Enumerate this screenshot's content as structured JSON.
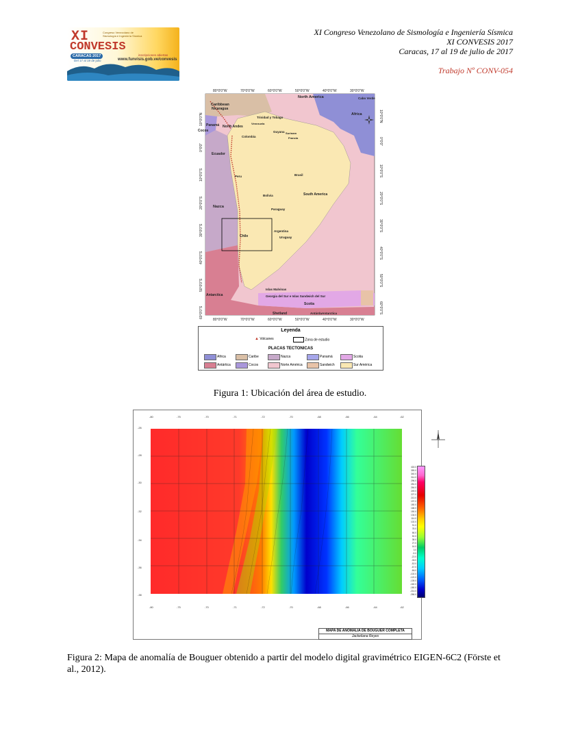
{
  "logo": {
    "line1": "XI",
    "line2": "CONVESIS",
    "sub": "Congreso Venezolano de Sismología e Ingeniería Sísmica",
    "badge": "CARACAS 2017",
    "dates": "Del 17 al 19 de julio",
    "inscripciones": "inscripciones abiertas",
    "url": "www.funvisis.gob.ve/convesis"
  },
  "header": {
    "line1": "XI Congreso Venezolano de Sismología e Ingeniería Sísmica",
    "line2": "XI CONVESIS 2017",
    "line3": "Caracas, 17 al 19 de julio de 2017",
    "paper_id": "Trabajo Nº CONV-054"
  },
  "figure1": {
    "lon_labels": [
      "80°0'0\"W",
      "70°0'0\"W",
      "60°0'0\"W",
      "50°0'0\"W",
      "40°0'0\"W",
      "30°0'0\"W"
    ],
    "lat_labels": [
      "10°0'0\"N",
      "0°0'0\"",
      "10°0'0\"S",
      "20°0'0\"S",
      "30°0'0\"S",
      "40°0'0\"S",
      "50°0'0\"S",
      "60°0'0\"S"
    ],
    "labels": {
      "caribbean": "Caribbean",
      "north_america": "North America",
      "cabo_verde": "Cabo Verde",
      "africa": "Africa",
      "nicaragua": "Nicaragua",
      "panama": "Panamá",
      "cocos": "Cocos",
      "north_andes": "North Andes",
      "colombia": "Colombia",
      "ecuador": "Ecuador",
      "trinidad": "Trinidad y Tobago",
      "venezuela": "Venezuela",
      "guyana": "Guyana",
      "surinam": "Surinam",
      "francia": "Francia",
      "peru": "Peru",
      "brasil": "Brasil",
      "bolivia": "Bolivia",
      "south_america": "South America",
      "paraguay": "Paraguay",
      "nazca": "Nazca",
      "chile": "Chile",
      "argentina": "Argentina",
      "uruguay": "Uruguay",
      "antarctica": "Antarctica",
      "malvinas": "Islas Malvinas",
      "georgia": "Georgia del Sur e Islas Sandwich del Sur",
      "scotia": "Scotia",
      "shetland": "Shetland",
      "antartida": "AntárdaAntarctica"
    },
    "legend": {
      "title": "Leyenda",
      "volcanes": "Volcanes",
      "zona": "Zona de estudio",
      "plates_title": "PLACAS TECTONICAS",
      "plates": [
        {
          "name": "Africa",
          "color": "#8f8fd6"
        },
        {
          "name": "Caribe",
          "color": "#d9bfa6"
        },
        {
          "name": "Nazca",
          "color": "#c6a9c9"
        },
        {
          "name": "Panamá",
          "color": "#a6a6ea"
        },
        {
          "name": "Scotia",
          "color": "#e2a8e6"
        },
        {
          "name": "Antártica",
          "color": "#d87f92"
        },
        {
          "name": "Cocos",
          "color": "#a997db"
        },
        {
          "name": "Norte América",
          "color": "#f1c6cf"
        },
        {
          "name": "Sandwich",
          "color": "#e8c3a8"
        },
        {
          "name": "Sur América",
          "color": "#fae8b3"
        }
      ]
    }
  },
  "caption1": "Figura 1: Ubicación del área de estudio.",
  "figure2": {
    "x_ticks": [
      "-80",
      "-75",
      "-70",
      "-71",
      "-72",
      "-70",
      "-68",
      "-66",
      "-64",
      "-62"
    ],
    "y_ticks": [
      "-26",
      "-28",
      "-30",
      "-32",
      "-34",
      "-36",
      "-38"
    ],
    "colorbar": [
      "418.0",
      "359.0",
      "340.0",
      "314.0",
      "296.0",
      "281.0",
      "264.0",
      "249.0",
      "227.0",
      "213.0",
      "197.0",
      "180.0",
      "168.0",
      "150.0",
      "134.0",
      "114.0",
      "102.0",
      "91.0",
      "78.0",
      "66.0",
      "52.0",
      "38.0",
      "27.0",
      "16.0",
      "3.0",
      "-9.0",
      "-22.0",
      "-36.0",
      "-52.0",
      "-67.0",
      "-86.0",
      "-102.0",
      "-122.0",
      "-139.0",
      "-160.0",
      "-180.0",
      "-214.0",
      "-266.0"
    ],
    "title": "MAPA DE ANOMALIA DE BOUGUER COMPLETA",
    "author": "Jackeliana Reyes"
  },
  "caption2": "Figura 2: Mapa de anomalía de Bouguer obtenido a partir del modelo digital gravimétrico EIGEN-6C2 (Förste et al., 2012)."
}
